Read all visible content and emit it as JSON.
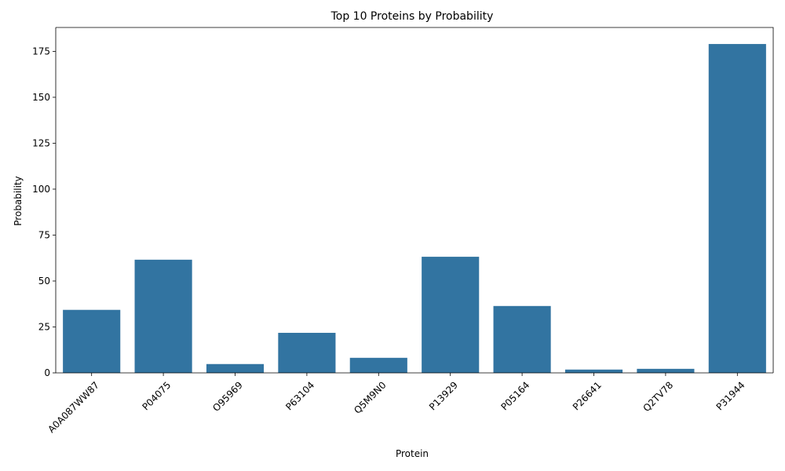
{
  "chart_data": {
    "type": "bar",
    "title": "Top 10 Proteins by Probability",
    "xlabel": "Protein",
    "ylabel": "Probability",
    "categories": [
      "A0A087WW87",
      "P04075",
      "O95969",
      "P63104",
      "Q5M9N0",
      "P13929",
      "P05164",
      "P26641",
      "Q2TV78",
      "P31944"
    ],
    "values": [
      34.3,
      61.6,
      4.8,
      21.8,
      8.2,
      63.2,
      36.4,
      1.8,
      2.2,
      179
    ],
    "ylim": [
      0,
      188
    ],
    "yticks": [
      0,
      25,
      50,
      75,
      100,
      125,
      150,
      175
    ],
    "bar_color": "#3274a1",
    "grid": false,
    "legend": "none"
  }
}
